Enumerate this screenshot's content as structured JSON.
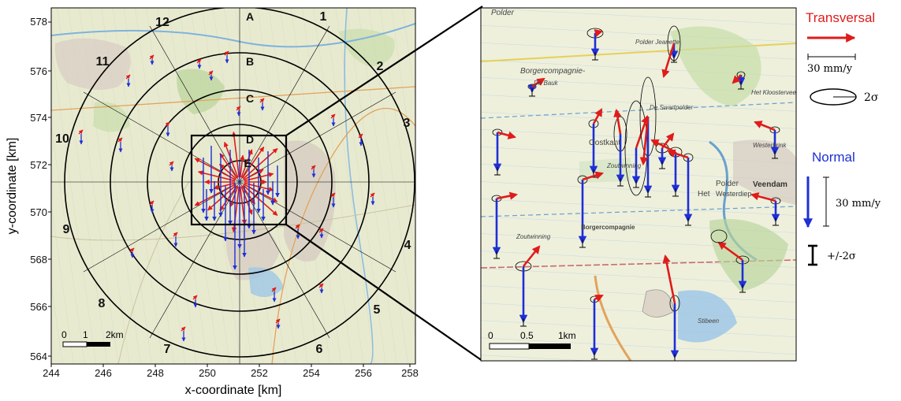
{
  "left_map": {
    "xlabel": "x-coordinate [km]",
    "ylabel": "y-coordinate [km]",
    "x_ticks": [
      "244",
      "246",
      "248",
      "250",
      "252",
      "254",
      "256",
      "258"
    ],
    "y_ticks": [
      "578",
      "576",
      "574",
      "572",
      "570",
      "568",
      "566",
      "564"
    ],
    "ring_labels": [
      "A",
      "B",
      "C",
      "D",
      "E"
    ],
    "sector_labels": [
      "1",
      "2",
      "3",
      "4",
      "5",
      "6",
      "7",
      "8",
      "9",
      "10",
      "11",
      "12"
    ],
    "scalebar": {
      "labels": [
        "0",
        "1",
        "2km"
      ]
    },
    "colors": {
      "transversal": "#e01b1b",
      "normal": "#1f2fd6",
      "map_bg": "#e9ead2"
    }
  },
  "right_map": {
    "place_labels": [
      "Polder",
      "Polder Jeanette",
      "Borgercompagnie-",
      "De Swartpolder",
      "Het Kloosterveen",
      "Oostkant",
      "Polder",
      "Het",
      "Westerdiep",
      "Veendam",
      "Borgercompagnie",
      "Zoutwinning",
      "Stibeen",
      "Westerbrink",
      "Zoutwinning",
      "De Bauk"
    ],
    "scalebar": {
      "labels": [
        "0",
        "0.5",
        "1km"
      ]
    }
  },
  "legend": {
    "transversal_label": "Transversal",
    "transversal_scale": "30 mm/y",
    "ellipse_label": "2σ",
    "normal_label": "Normal",
    "normal_scale": "30 mm/y",
    "errorbar_label": "+/-2σ"
  }
}
